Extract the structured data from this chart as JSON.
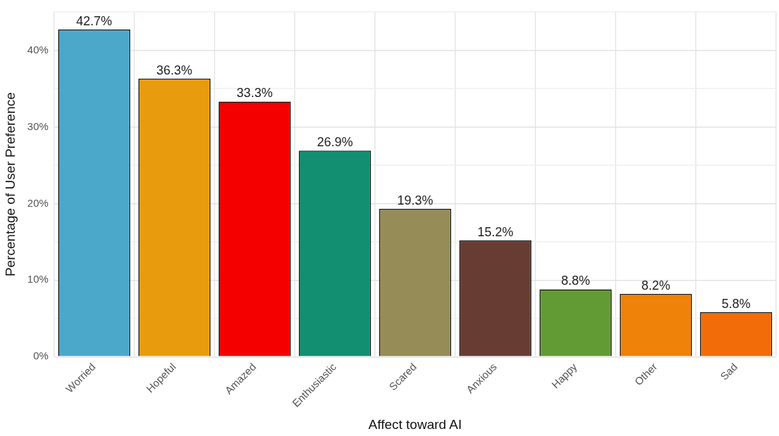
{
  "chart_data": {
    "type": "bar",
    "xlabel": "Affect toward AI",
    "ylabel": "Percentage of User Preference",
    "categories": [
      "Worried",
      "Hopeful",
      "Amazed",
      "Enthusiastic",
      "Scared",
      "Anxious",
      "Happy",
      "Other",
      "Sad"
    ],
    "values": [
      42.7,
      36.3,
      33.3,
      26.9,
      19.3,
      15.2,
      8.8,
      8.2,
      5.8
    ],
    "colors": [
      "#4ba8cb",
      "#e89b0c",
      "#f50000",
      "#128f70",
      "#968c57",
      "#673d33",
      "#629a34",
      "#ef8209",
      "#f26c0a"
    ],
    "value_labels": [
      "42.7%",
      "36.3%",
      "33.3%",
      "26.9%",
      "19.3%",
      "15.2%",
      "8.8%",
      "8.2%",
      "5.8%"
    ],
    "ylim": [
      0,
      45
    ],
    "yticks": [
      {
        "value": 0,
        "label": "0%"
      },
      {
        "value": 5,
        "label": null
      },
      {
        "value": 10,
        "label": "10%"
      },
      {
        "value": 15,
        "label": null
      },
      {
        "value": 20,
        "label": "20%"
      },
      {
        "value": 25,
        "label": null
      },
      {
        "value": 30,
        "label": "30%"
      },
      {
        "value": 35,
        "label": null
      },
      {
        "value": 40,
        "label": "40%"
      },
      {
        "value": 45,
        "label": null
      }
    ],
    "grid": true,
    "legend": false
  }
}
